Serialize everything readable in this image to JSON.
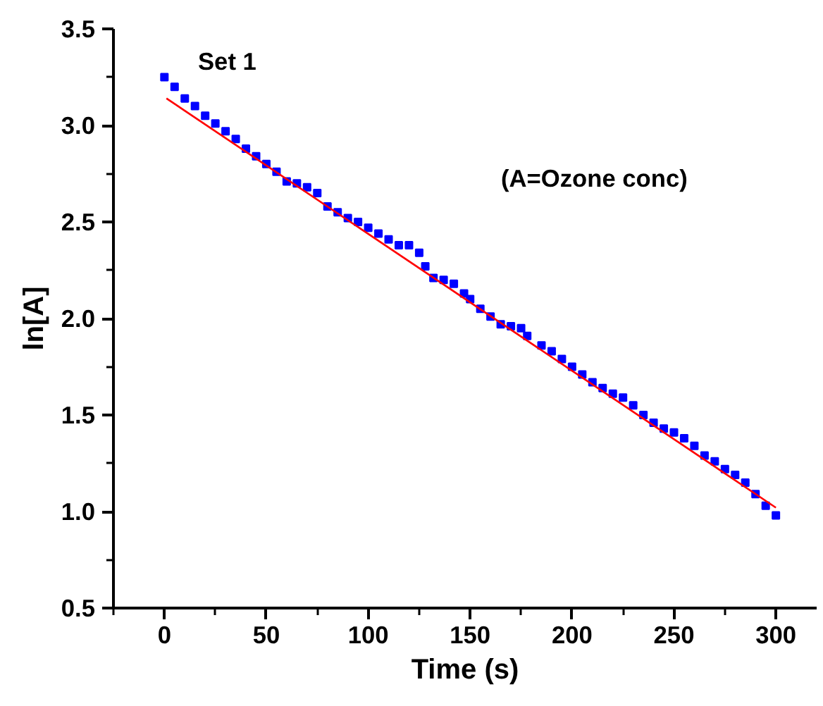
{
  "chart_data": {
    "type": "scatter",
    "xlabel": "Time (s)",
    "ylabel": "ln[A]",
    "annotations": [
      "Set 1",
      "(A=Ozone conc)"
    ],
    "xlim": [
      -25,
      320
    ],
    "ylim": [
      0.5,
      3.5
    ],
    "xticks": [
      0,
      50,
      100,
      150,
      200,
      250,
      300
    ],
    "yticks": [
      0.5,
      {
        "value": 1,
        "label": "1.0"
      },
      1.5,
      {
        "value": 2,
        "label": "2.0"
      },
      2.5,
      {
        "value": 3,
        "label": "3.0"
      },
      3.5
    ],
    "marker": "square",
    "series": [
      {
        "color": "#0000ff",
        "x": [
          0,
          5,
          10,
          15,
          20,
          25,
          30,
          35,
          40,
          45,
          50,
          55,
          60,
          65,
          70,
          75,
          80,
          85,
          90,
          95,
          100,
          105,
          110,
          115,
          120,
          125,
          128,
          132,
          137,
          142,
          147,
          150,
          155,
          160,
          165,
          170,
          175,
          178,
          185,
          190,
          195,
          200,
          205,
          210,
          215,
          220,
          225,
          230,
          235,
          240,
          245,
          250,
          255,
          260,
          265,
          270,
          275,
          280,
          285,
          290,
          295,
          300
        ],
        "values": [
          3.25,
          3.2,
          3.14,
          3.1,
          3.05,
          3.01,
          2.97,
          2.93,
          2.88,
          2.84,
          2.8,
          2.76,
          2.71,
          2.7,
          2.68,
          2.65,
          2.58,
          2.55,
          2.52,
          2.5,
          2.47,
          2.44,
          2.41,
          2.38,
          2.38,
          2.34,
          2.27,
          2.21,
          2.2,
          2.18,
          2.13,
          2.1,
          2.05,
          2.01,
          1.97,
          1.96,
          1.95,
          1.91,
          1.86,
          1.83,
          1.79,
          1.75,
          1.71,
          1.67,
          1.64,
          1.61,
          1.59,
          1.55,
          1.5,
          1.46,
          1.43,
          1.41,
          1.38,
          1.34,
          1.29,
          1.26,
          1.22,
          1.19,
          1.15,
          1.09,
          1.03,
          0.98
        ]
      },
      {
        "type": "line",
        "color": "#ff0000",
        "marker": "none",
        "line_style": "solid",
        "x": [
          1,
          300
        ],
        "values": [
          3.14,
          1.02
        ]
      }
    ]
  }
}
